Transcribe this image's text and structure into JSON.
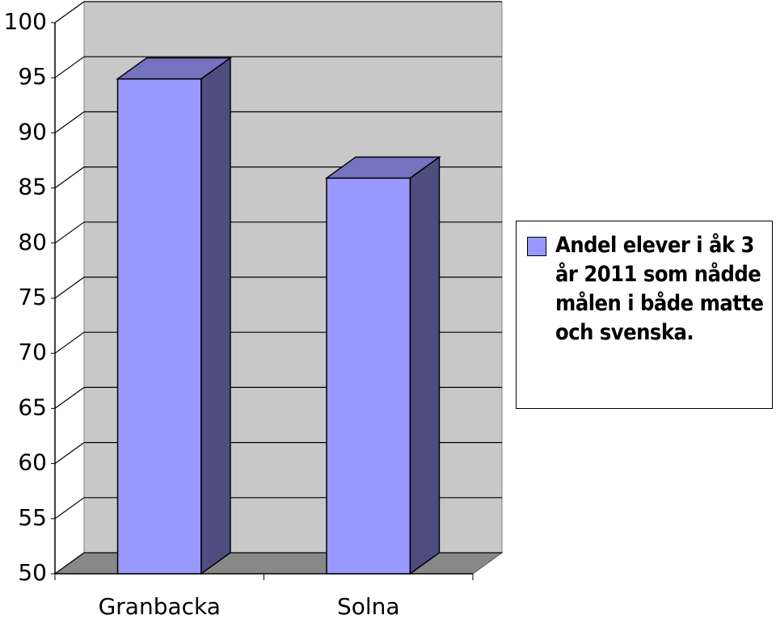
{
  "chart_data": {
    "type": "bar3d",
    "categories": [
      "Granbacka",
      "Solna"
    ],
    "series": [
      {
        "name": "Andel elever i åk 3 år 2011 som nådde målen i både matte och svenska.",
        "color": "#9999ff",
        "values": [
          94.9,
          85.9
        ]
      }
    ],
    "ylim": [
      50,
      100
    ],
    "yticks": [
      50,
      55,
      60,
      65,
      70,
      75,
      80,
      85,
      90,
      95,
      100
    ],
    "grid": true,
    "legend": "right"
  }
}
